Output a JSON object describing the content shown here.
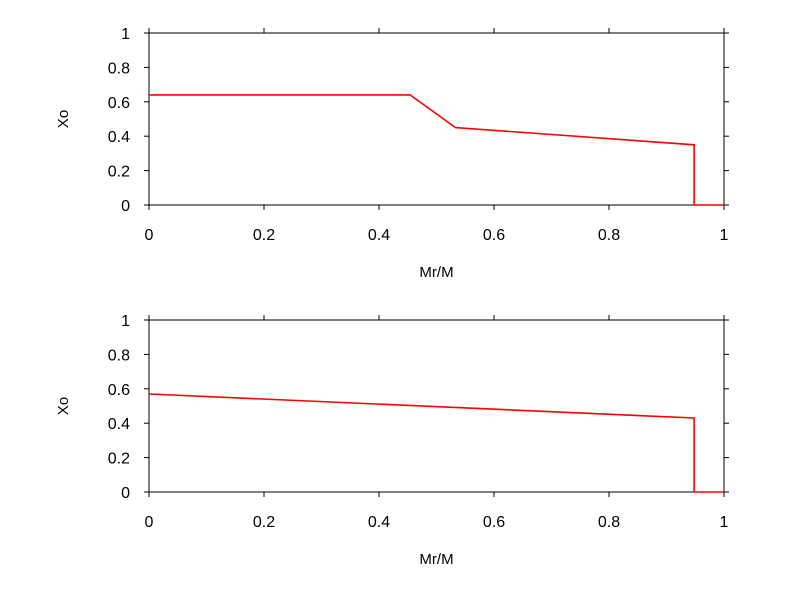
{
  "chart_data": [
    {
      "type": "line",
      "xlabel": "Mr/M",
      "ylabel": "Xo",
      "xlim": [
        0,
        1
      ],
      "ylim": [
        0,
        1
      ],
      "xticks": [
        "0",
        "0.2",
        "0.4",
        "0.6",
        "0.8",
        "1"
      ],
      "yticks": [
        "0",
        "0.2",
        "0.4",
        "0.6",
        "0.8",
        "1"
      ],
      "grid": false,
      "series": [
        {
          "color": "#ff0000",
          "points": [
            [
              0,
              0.64
            ],
            [
              0.454,
              0.64
            ],
            [
              0.533,
              0.45
            ],
            [
              0.948,
              0.35
            ],
            [
              0.948,
              0.0
            ],
            [
              1.0,
              0.0
            ]
          ]
        }
      ]
    },
    {
      "type": "line",
      "xlabel": "Mr/M",
      "ylabel": "Xo",
      "xlim": [
        0,
        1
      ],
      "ylim": [
        0,
        1
      ],
      "xticks": [
        "0",
        "0.2",
        "0.4",
        "0.6",
        "0.8",
        "1"
      ],
      "yticks": [
        "0",
        "0.2",
        "0.4",
        "0.6",
        "0.8",
        "1"
      ],
      "grid": false,
      "series": [
        {
          "color": "#ff0000",
          "points": [
            [
              0,
              0.57
            ],
            [
              0.948,
              0.43
            ],
            [
              0.948,
              0.0
            ],
            [
              1.0,
              0.0
            ]
          ]
        }
      ]
    }
  ]
}
